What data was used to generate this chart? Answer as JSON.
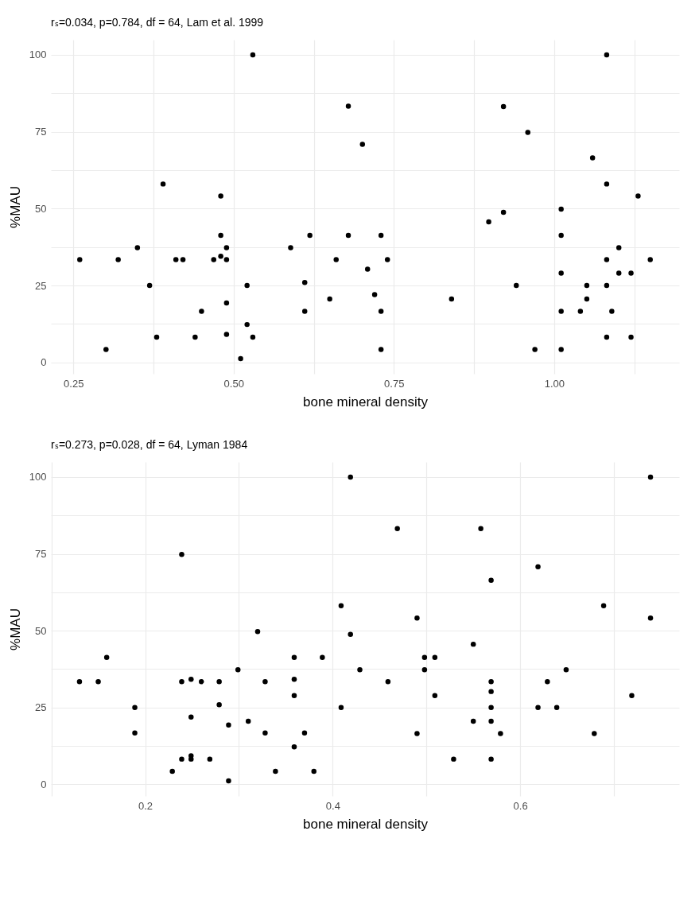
{
  "chart_data": [
    {
      "type": "scatter",
      "title": "rₛ=0.034, p=0.784, df = 64, Lam et al. 1999",
      "xlabel": "bone mineral density",
      "ylabel": "%MAU",
      "marker": "circle",
      "grid": true,
      "xlim": [
        0.215,
        1.195
      ],
      "xticks": [
        {
          "value": 0.25,
          "label": "0.25"
        },
        {
          "value": 0.375,
          "label": null
        },
        {
          "value": 0.5,
          "label": "0.50"
        },
        {
          "value": 0.625,
          "label": null
        },
        {
          "value": 0.75,
          "label": "0.75"
        },
        {
          "value": 0.875,
          "label": null
        },
        {
          "value": 1.0,
          "label": "1.00"
        },
        {
          "value": 1.125,
          "label": null
        }
      ],
      "ylim": [
        -3.7,
        104.9
      ],
      "yticks": [
        0,
        {
          "value": 12.5,
          "label": null
        },
        25,
        {
          "value": 37.5,
          "label": null
        },
        50,
        {
          "value": 62.5,
          "label": null
        },
        75,
        {
          "value": 87.5,
          "label": null
        },
        100
      ],
      "series": [
        {
          "color": "#000000",
          "x": [
            0.53,
            0.679,
            0.39,
            0.48,
            0.48,
            0.619,
            0.679,
            0.35,
            0.489,
            0.589,
            0.26,
            0.32,
            0.41,
            0.421,
            0.469,
            0.48,
            0.489,
            0.66,
            0.369,
            0.521,
            0.611,
            0.489,
            0.45,
            0.611,
            0.65,
            0.521,
            0.38,
            0.44,
            0.489,
            0.53,
            0.301,
            0.511,
            0.701,
            1.082,
            0.921,
            0.959,
            1.06,
            1.082,
            1.131,
            0.921,
            0.898,
            1.011,
            1.011,
            0.73,
            1.101,
            0.74,
            1.082,
            1.15,
            0.709,
            1.011,
            1.101,
            1.12,
            0.941,
            1.051,
            1.082,
            0.72,
            0.84,
            1.051,
            0.73,
            1.011,
            1.041,
            1.09,
            1.082,
            1.12,
            0.73,
            0.97,
            1.011
          ],
          "values": [
            100,
            83.3,
            58,
            54.1,
            41.3,
            41.3,
            41.3,
            37.3,
            37.3,
            37.3,
            33.4,
            33.4,
            33.4,
            33.4,
            33.4,
            34.5,
            33.4,
            33.4,
            25,
            25,
            26,
            19.3,
            16.6,
            16.6,
            20.6,
            12.3,
            8.2,
            8.2,
            9.1,
            8.2,
            4.2,
            1.2,
            70.9,
            100,
            83.2,
            74.8,
            66.5,
            58,
            54.1,
            48.8,
            45.7,
            49.8,
            41.3,
            41.3,
            37.3,
            33.4,
            33.4,
            33.4,
            30.3,
            29,
            29,
            29,
            25,
            25,
            25,
            22,
            20.6,
            20.6,
            16.6,
            16.6,
            16.6,
            16.6,
            8.2,
            8.2,
            4.2,
            4.2,
            4.2
          ]
        }
      ]
    },
    {
      "type": "scatter",
      "title": "rₛ=0.273, p=0.028, df = 64, Lyman 1984",
      "xlabel": "bone mineral density",
      "ylabel": "%MAU",
      "marker": "circle",
      "grid": true,
      "xlim": [
        0.0995,
        0.7695
      ],
      "xticks": [
        {
          "value": 0.1,
          "label": null
        },
        0.2,
        {
          "value": 0.3,
          "label": null
        },
        0.4,
        {
          "value": 0.5,
          "label": null
        },
        0.6,
        {
          "value": 0.7,
          "label": null
        }
      ],
      "ylim": [
        -3.8,
        104.9
      ],
      "yticks": [
        0,
        {
          "value": 12.5,
          "label": null
        },
        25,
        {
          "value": 37.5,
          "label": null
        },
        50,
        {
          "value": 62.5,
          "label": null
        },
        75,
        {
          "value": 87.5,
          "label": null
        },
        100
      ],
      "series": [
        {
          "color": "#000000",
          "x": [
            0.419,
            0.239,
            0.409,
            0.32,
            0.419,
            0.159,
            0.359,
            0.389,
            0.299,
            0.13,
            0.15,
            0.239,
            0.249,
            0.26,
            0.279,
            0.328,
            0.359,
            0.359,
            0.189,
            0.279,
            0.409,
            0.249,
            0.289,
            0.31,
            0.189,
            0.328,
            0.37,
            0.359,
            0.239,
            0.249,
            0.249,
            0.269,
            0.229,
            0.339,
            0.38,
            0.289,
            0.469,
            0.558,
            0.739,
            0.619,
            0.569,
            0.689,
            0.49,
            0.739,
            0.55,
            0.498,
            0.509,
            0.429,
            0.498,
            0.649,
            0.459,
            0.569,
            0.629,
            0.569,
            0.509,
            0.719,
            0.569,
            0.619,
            0.639,
            0.55,
            0.569,
            0.49,
            0.579,
            0.679,
            0.529,
            0.569
          ],
          "values": [
            100,
            74.8,
            58.1,
            49.7,
            48.8,
            41.3,
            41.3,
            41.3,
            37.3,
            33.4,
            33.4,
            33.4,
            34.2,
            33.4,
            33.4,
            33.4,
            34.2,
            28.9,
            25,
            25.9,
            25,
            21.9,
            19.3,
            20.5,
            16.7,
            16.7,
            16.7,
            12.2,
            8.2,
            9.3,
            8.2,
            8.2,
            4.2,
            4.2,
            4.2,
            1.1,
            83.2,
            83.2,
            100,
            70.8,
            66.4,
            58.1,
            54.1,
            54.1,
            45.6,
            41.3,
            41.3,
            37.3,
            37.3,
            37.3,
            33.4,
            33.4,
            33.4,
            30.2,
            28.9,
            28.9,
            25,
            25,
            25,
            20.5,
            20.5,
            16.5,
            16.5,
            16.5,
            8.2,
            8.2
          ]
        }
      ]
    }
  ]
}
